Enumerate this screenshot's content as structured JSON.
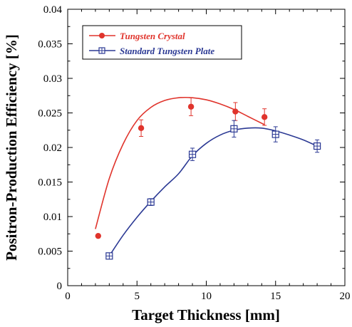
{
  "chart_data": {
    "type": "scatter",
    "xlabel": "Target Thickness [mm]",
    "ylabel": "Positron-Production Efficiency [%]",
    "xlim": [
      0,
      20
    ],
    "ylim": [
      0,
      0.04
    ],
    "x_ticks": [
      "0",
      "5",
      "10",
      "15",
      "20"
    ],
    "y_ticks": [
      "0",
      "0.005",
      "0.01",
      "0.015",
      "0.02",
      "0.025",
      "0.03",
      "0.035",
      "0.04"
    ],
    "grid": false,
    "legend_position": "top-left",
    "series": [
      {
        "name": "Tungsten Crystal",
        "color": "#e0342c",
        "marker": "filled-circle",
        "x": [
          2.2,
          5.3,
          8.9,
          12.1,
          14.2
        ],
        "y": [
          0.0072,
          0.0228,
          0.0259,
          0.0252,
          0.0244
        ],
        "error": [
          0,
          0.0012,
          0.0013,
          0.0013,
          0.0012
        ],
        "fit_curve": {
          "x": [
            2.0,
            3.0,
            4.0,
            5.0,
            6.0,
            7.0,
            8.0,
            9.0,
            10.0,
            11.0,
            12.0,
            13.0,
            14.2
          ],
          "y": [
            0.0082,
            0.0155,
            0.0205,
            0.0239,
            0.0258,
            0.0268,
            0.0272,
            0.0272,
            0.0269,
            0.0263,
            0.0255,
            0.0245,
            0.0233
          ]
        }
      },
      {
        "name": "Standard Tungsten Plate",
        "color": "#2b3994",
        "marker": "boxed-cross",
        "x": [
          3.0,
          6.0,
          9.0,
          12.0,
          15.0,
          18.0
        ],
        "y": [
          0.0043,
          0.0121,
          0.019,
          0.0227,
          0.0219,
          0.0202
        ],
        "error": [
          0,
          0.0005,
          0.0009,
          0.0012,
          0.0011,
          0.0009
        ],
        "fit_curve": {
          "x": [
            3.0,
            4.0,
            5.0,
            6.0,
            7.0,
            8.0,
            9.0,
            10.0,
            11.0,
            12.0,
            13.0,
            14.0,
            15.0,
            16.0,
            17.0,
            18.0
          ],
          "y": [
            0.0043,
            0.0073,
            0.0099,
            0.0122,
            0.0143,
            0.0162,
            0.0188,
            0.0206,
            0.0218,
            0.0225,
            0.0228,
            0.0228,
            0.0224,
            0.0218,
            0.0211,
            0.0202
          ]
        }
      }
    ]
  }
}
